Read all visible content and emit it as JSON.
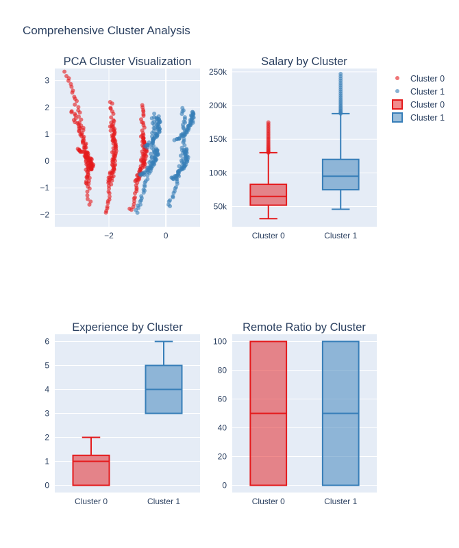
{
  "title": "Comprehensive Cluster Analysis",
  "colors": {
    "cluster0": "#e41a1c",
    "cluster1": "#377eb8",
    "plot_bg": "#e5ecf6",
    "text": "#2a3f5f"
  },
  "legend": {
    "placement": "top-right",
    "items": [
      {
        "label": "Cluster 0",
        "kind": "marker",
        "color": "#e41a1c"
      },
      {
        "label": "Cluster 1",
        "kind": "marker",
        "color": "#377eb8"
      },
      {
        "label": "Cluster 0",
        "kind": "box",
        "color": "#e41a1c"
      },
      {
        "label": "Cluster 1",
        "kind": "box",
        "color": "#377eb8"
      }
    ]
  },
  "chart_data": [
    {
      "type": "scatter",
      "title": "PCA Cluster Visualization",
      "xlim": [
        -3.9,
        1.2
      ],
      "ylim": [
        -2.45,
        3.45
      ],
      "xticks": [
        -2,
        0
      ],
      "yticks": [
        -2,
        -1,
        0,
        1,
        2,
        3
      ],
      "grid": true,
      "series": [
        {
          "name": "Cluster 0",
          "color": "#e41a1c",
          "bands": [
            {
              "top": [
                -3.5,
                3.3
              ],
              "bottom": [
                -2.7,
                -1.6
              ]
            },
            {
              "top": [
                -3.3,
                1.85
              ],
              "bottom": [
                -2.8,
                -0.85
              ]
            },
            {
              "top": [
                -3.1,
                0.45
              ],
              "bottom": [
                -2.65,
                -0.35
              ]
            },
            {
              "top": [
                -1.95,
                2.2
              ],
              "bottom": [
                -2.15,
                -1.95
              ]
            },
            {
              "top": [
                -1.95,
                1.4
              ],
              "bottom": [
                -2.05,
                -0.85
              ]
            },
            {
              "top": [
                -0.85,
                2.1
              ],
              "bottom": [
                -1.25,
                -1.85
              ]
            },
            {
              "top": [
                -0.85,
                0.95
              ],
              "bottom": [
                -1.05,
                -0.75
              ]
            }
          ]
        },
        {
          "name": "Cluster 1",
          "color": "#377eb8",
          "bands": [
            {
              "top": [
                -0.45,
                1.75
              ],
              "bottom": [
                -1.05,
                -1.95
              ]
            },
            {
              "top": [
                -0.35,
                0.45
              ],
              "bottom": [
                -0.9,
                -0.55
              ]
            },
            {
              "top": [
                -0.3,
                1.65
              ],
              "bottom": [
                -0.7,
                0.5
              ]
            },
            {
              "top": [
                0.6,
                2.0
              ],
              "bottom": [
                0.1,
                -1.7
              ]
            },
            {
              "top": [
                0.7,
                0.45
              ],
              "bottom": [
                0.2,
                -0.7
              ]
            },
            {
              "top": [
                0.9,
                1.85
              ],
              "bottom": [
                0.35,
                0.75
              ]
            }
          ]
        }
      ]
    },
    {
      "type": "box",
      "title": "Salary by Cluster",
      "categories": [
        "Cluster 0",
        "Cluster 1"
      ],
      "ylim": [
        20000,
        255000
      ],
      "yticks": [
        50000,
        100000,
        150000,
        200000,
        250000
      ],
      "ytick_labels": [
        "50k",
        "100k",
        "150k",
        "200k",
        "250k"
      ],
      "series": [
        {
          "name": "Cluster 0",
          "color": "#e41a1c",
          "min": 32000,
          "q1": 52000,
          "median": 65000,
          "q3": 83000,
          "upper_fence": 130000,
          "outlier_range": [
            130000,
            175000
          ]
        },
        {
          "name": "Cluster 1",
          "color": "#377eb8",
          "min": 46000,
          "q1": 75000,
          "median": 95000,
          "q3": 120000,
          "upper_fence": 188000,
          "outlier_range": [
            188000,
            247000
          ]
        }
      ]
    },
    {
      "type": "box",
      "title": "Experience by Cluster",
      "categories": [
        "Cluster 0",
        "Cluster 1"
      ],
      "ylim": [
        -0.3,
        6.3
      ],
      "yticks": [
        0,
        1,
        2,
        3,
        4,
        5,
        6
      ],
      "ytick_labels": [
        "0",
        "1",
        "2",
        "3",
        "4",
        "5",
        "6"
      ],
      "series": [
        {
          "name": "Cluster 0",
          "color": "#e41a1c",
          "min": 0,
          "q1": 0,
          "median": 1,
          "q3": 1.25,
          "upper_fence": 2
        },
        {
          "name": "Cluster 1",
          "color": "#377eb8",
          "min": 3,
          "q1": 3,
          "median": 4,
          "q3": 5,
          "upper_fence": 6
        }
      ]
    },
    {
      "type": "box",
      "title": "Remote Ratio by Cluster",
      "categories": [
        "Cluster 0",
        "Cluster 1"
      ],
      "ylim": [
        -5,
        105
      ],
      "yticks": [
        0,
        20,
        40,
        60,
        80,
        100
      ],
      "ytick_labels": [
        "0",
        "20",
        "40",
        "60",
        "80",
        "100"
      ],
      "series": [
        {
          "name": "Cluster 0",
          "color": "#e41a1c",
          "min": 0,
          "q1": 0,
          "median": 50,
          "q3": 100,
          "upper_fence": 100
        },
        {
          "name": "Cluster 1",
          "color": "#377eb8",
          "min": 0,
          "q1": 0,
          "median": 50,
          "q3": 100,
          "upper_fence": 100
        }
      ]
    }
  ]
}
